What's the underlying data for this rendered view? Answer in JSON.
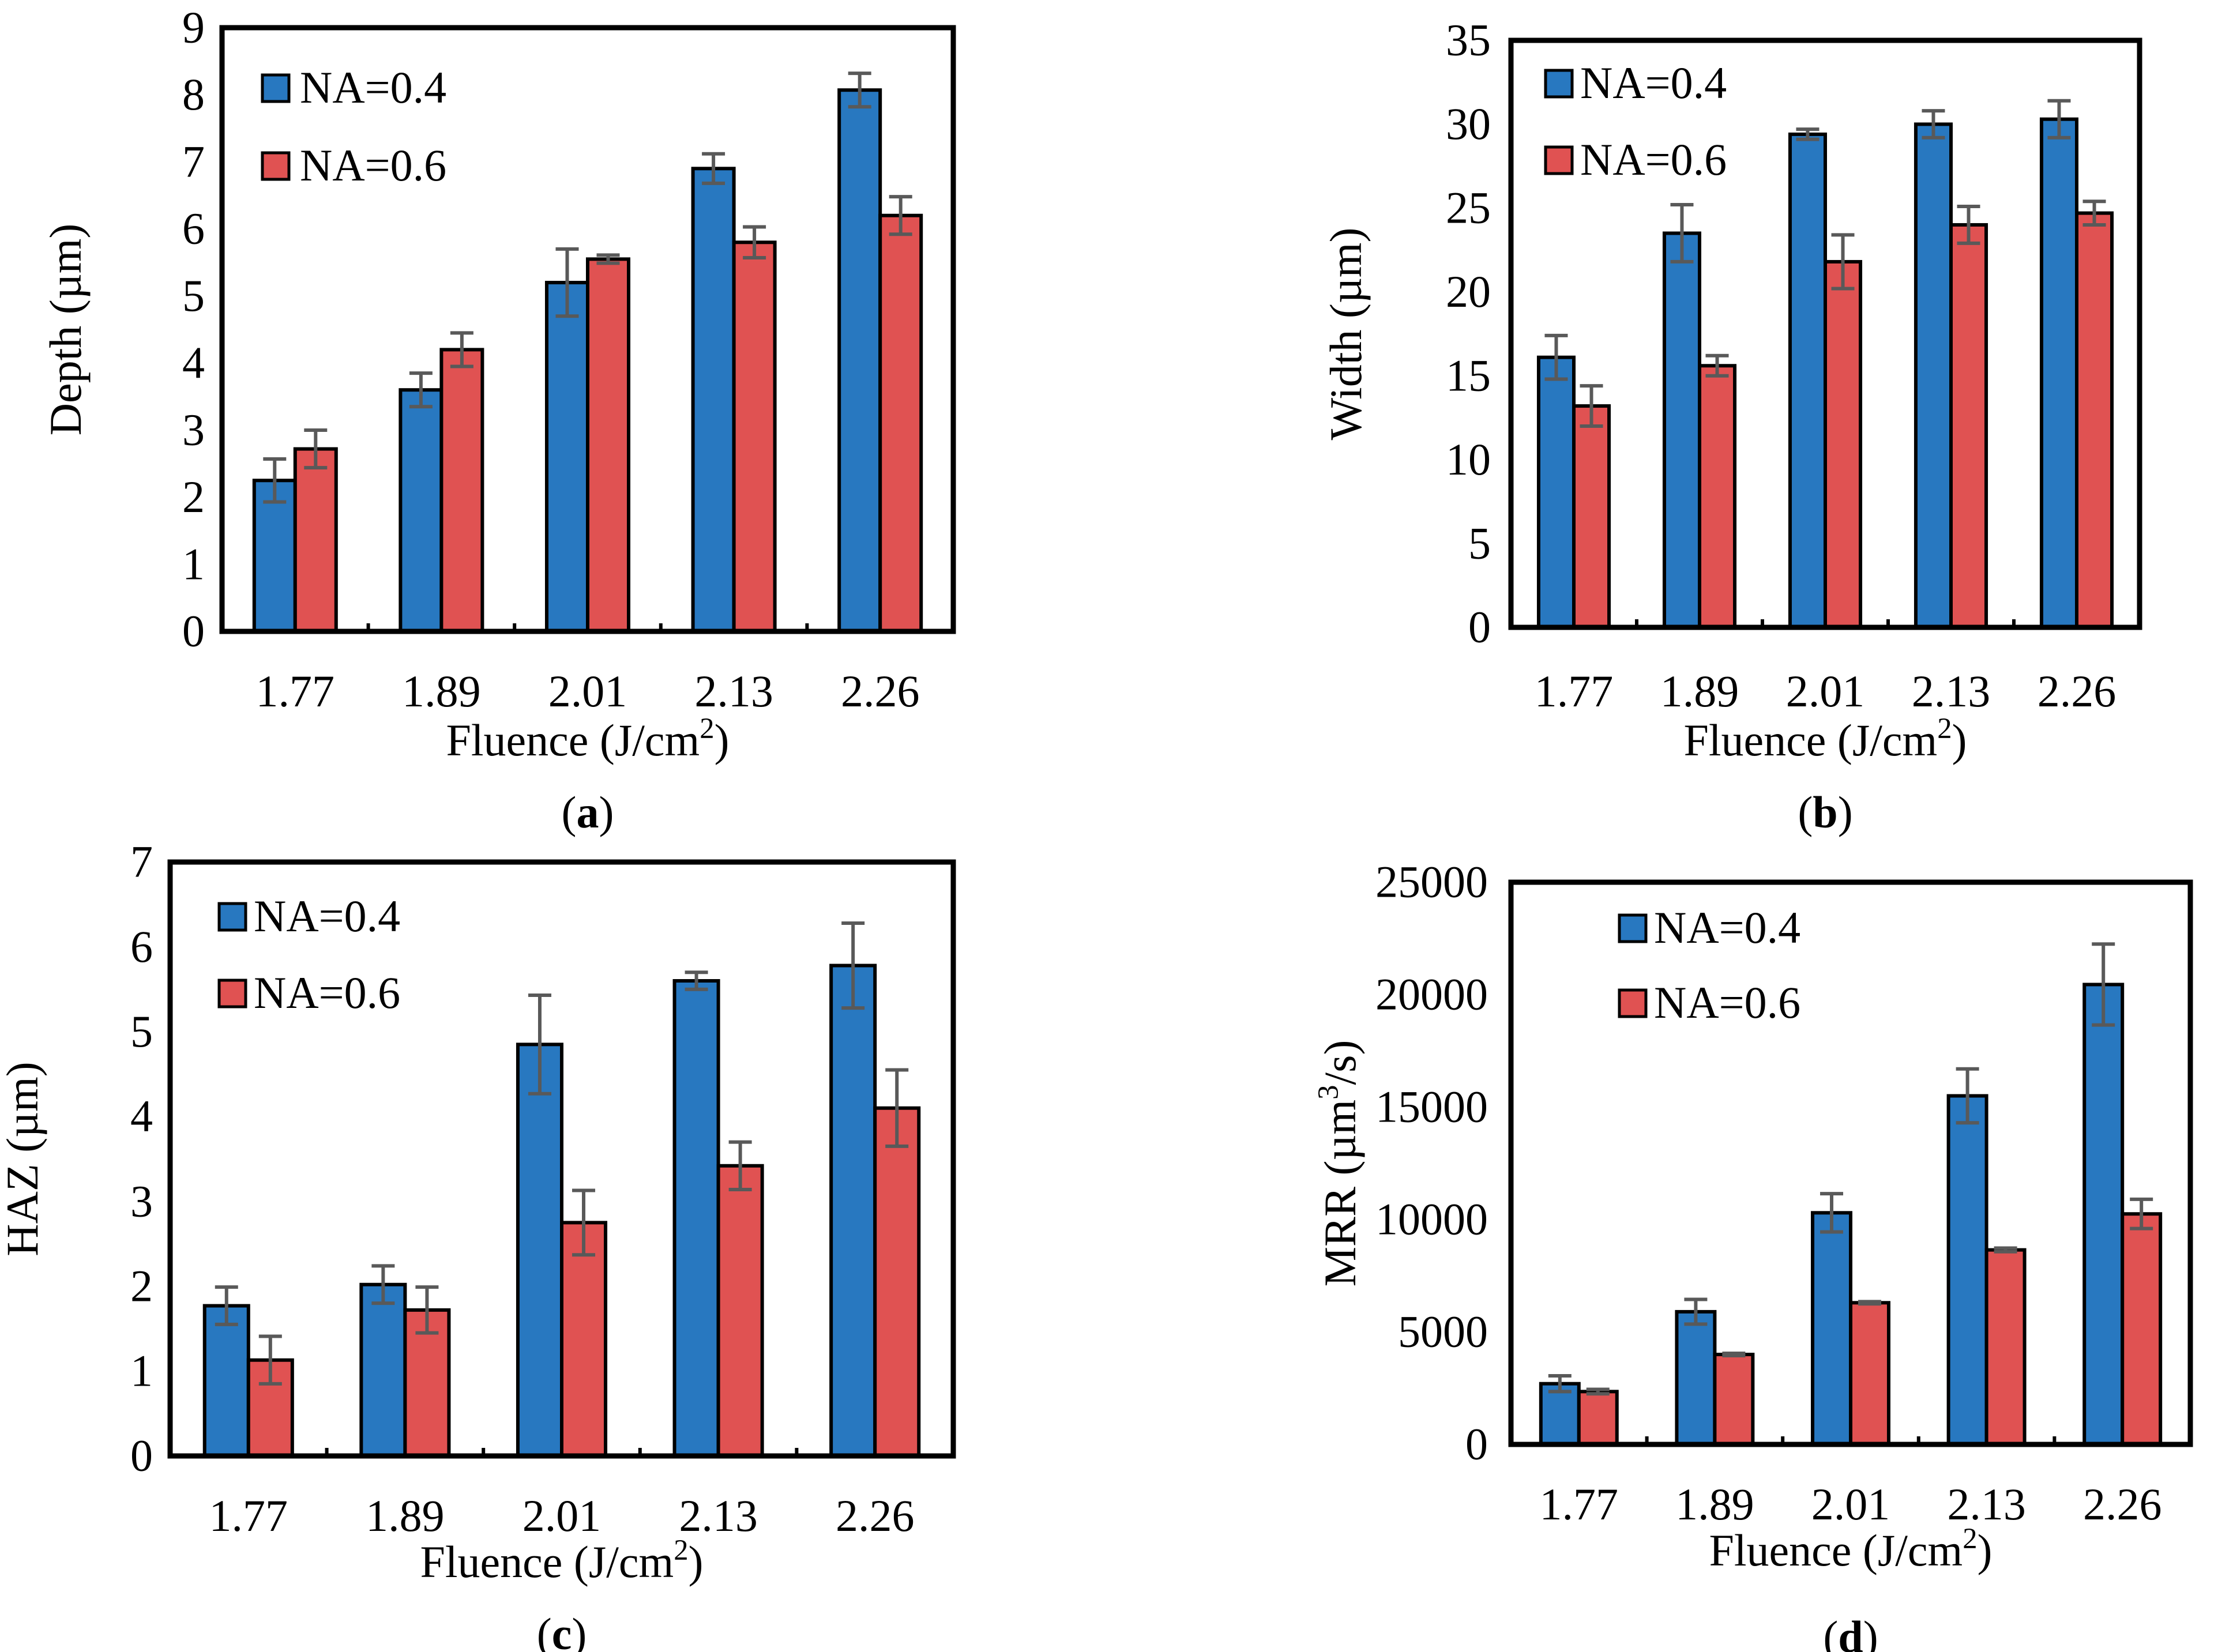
{
  "figure": {
    "colors": {
      "NA=0.4": "#2878c0",
      "NA=0.6": "#e05252",
      "error_bar": "#595959",
      "frame": "#000000"
    }
  },
  "chart_data": [
    {
      "type": "bar",
      "panel_label": "a",
      "categories": [
        "1.77",
        "1.89",
        "2.01",
        "2.13",
        "2.26"
      ],
      "series": [
        {
          "name": "NA=0.4",
          "values": [
            2.25,
            3.6,
            5.2,
            6.9,
            8.07
          ],
          "errors": [
            0.32,
            0.25,
            0.5,
            0.22,
            0.25
          ]
        },
        {
          "name": "NA=0.6",
          "values": [
            2.72,
            4.2,
            5.55,
            5.8,
            6.2
          ],
          "errors": [
            0.28,
            0.25,
            0.06,
            0.23,
            0.28
          ]
        }
      ],
      "yticks": [
        "0",
        "1",
        "2",
        "3",
        "4",
        "5",
        "6",
        "7",
        "8",
        "9"
      ],
      "ylabel": "Depth  (µm)",
      "xlabel": "Fluence (J/cm",
      "xlabel_sup": "2",
      "xlabel_end": ")",
      "ylim": [
        0,
        9
      ],
      "legend_position": "top-left"
    },
    {
      "type": "bar",
      "panel_label": "b",
      "categories": [
        "1.77",
        "1.89",
        "2.01",
        "2.13",
        "2.26"
      ],
      "series": [
        {
          "name": "NA=0.4",
          "values": [
            16.1,
            23.5,
            29.4,
            30.0,
            30.3
          ],
          "errors": [
            1.3,
            1.7,
            0.3,
            0.8,
            1.1
          ]
        },
        {
          "name": "NA=0.6",
          "values": [
            13.2,
            15.6,
            21.8,
            24.0,
            24.7
          ],
          "errors": [
            1.2,
            0.6,
            1.6,
            1.1,
            0.7
          ]
        }
      ],
      "yticks": [
        "0",
        "5",
        "10",
        "15",
        "20",
        "25",
        "30",
        "35"
      ],
      "ylabel": "Width  (µm)",
      "xlabel": "Fluence (J/cm",
      "xlabel_sup": "2",
      "xlabel_end": ")",
      "ylim": [
        0,
        35
      ],
      "legend_position": "top-left"
    },
    {
      "type": "bar",
      "panel_label": "c",
      "categories": [
        "1.77",
        "1.89",
        "2.01",
        "2.13",
        "2.26"
      ],
      "series": [
        {
          "name": "NA=0.4",
          "values": [
            1.77,
            2.02,
            4.85,
            5.6,
            5.78
          ],
          "errors": [
            0.22,
            0.22,
            0.58,
            0.1,
            0.5
          ]
        },
        {
          "name": "NA=0.6",
          "values": [
            1.13,
            1.72,
            2.75,
            3.42,
            4.1
          ],
          "errors": [
            0.28,
            0.27,
            0.38,
            0.28,
            0.45
          ]
        }
      ],
      "yticks": [
        "0",
        "1",
        "2",
        "3",
        "4",
        "5",
        "6",
        "7"
      ],
      "ylabel": "HAZ (µm)",
      "xlabel": "Fluence (J/cm",
      "xlabel_sup": "2",
      "xlabel_end": ")",
      "ylim": [
        0,
        7
      ],
      "legend_position": "top-left"
    },
    {
      "type": "bar",
      "panel_label": "d",
      "categories": [
        "1.77",
        "1.89",
        "2.01",
        "2.13",
        "2.26"
      ],
      "series": [
        {
          "name": "NA=0.4",
          "values": [
            2700,
            5900,
            10300,
            15500,
            20450
          ],
          "errors": [
            350,
            550,
            850,
            1200,
            1800
          ]
        },
        {
          "name": "NA=0.6",
          "values": [
            2350,
            4000,
            6300,
            8650,
            10250
          ],
          "errors": [
            100,
            50,
            50,
            80,
            650
          ]
        }
      ],
      "yticks": [
        "0",
        "5000",
        "10000",
        "15000",
        "20000",
        "25000"
      ],
      "ylabel": "MRR (µm",
      "ylabel_sup": "3",
      "ylabel_end": "/s)",
      "xlabel": "Fluence (J/cm",
      "xlabel_sup": "2",
      "xlabel_end": ")",
      "ylim": [
        0,
        25000
      ],
      "legend_position": "top-left"
    }
  ]
}
